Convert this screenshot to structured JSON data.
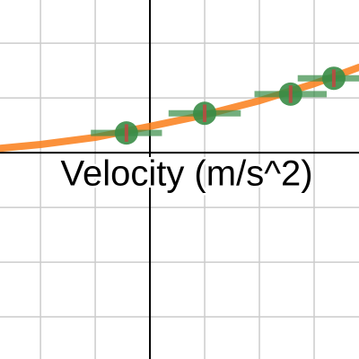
{
  "chart_data": {
    "type": "scatter",
    "title": "Velocity (m/s^2)",
    "xlim": [
      -2.74,
      3.82
    ],
    "ylim": [
      -3.77,
      2.79
    ],
    "xticks": [
      -2,
      -1,
      0,
      1,
      2,
      3
    ],
    "yticks": [
      -3,
      -2,
      -1,
      0,
      1,
      2
    ],
    "grid": true,
    "series": [
      {
        "type": "line",
        "color": "#fa7e19",
        "x": [
          -2.74,
          -2,
          -1,
          0,
          1,
          2,
          3,
          3.82
        ],
        "values": [
          0.08,
          0.15,
          0.28,
          0.48,
          0.69,
          0.95,
          1.26,
          1.56
        ]
      },
      {
        "type": "scatter",
        "color": "#388c46",
        "error_color": "#c74440",
        "x": [
          -0.43,
          1.0,
          2.57,
          3.36
        ],
        "values": [
          0.36,
          0.72,
          1.07,
          1.36
        ],
        "x_errors": [
          0.65,
          0.66,
          0.66,
          0.66
        ],
        "y_errors": [
          0.16,
          0.16,
          0.16,
          0.16
        ]
      }
    ]
  }
}
